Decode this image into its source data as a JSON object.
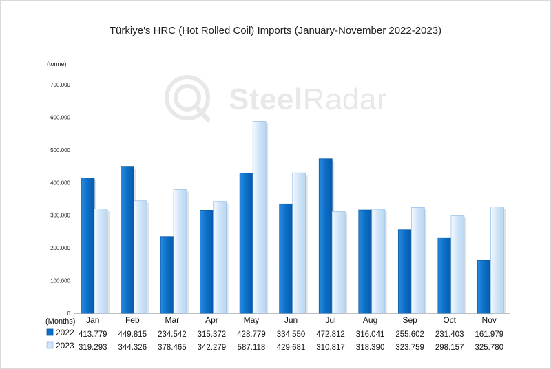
{
  "chart_data": {
    "type": "bar",
    "title": "Türkiye's HRC (Hot Rolled Coil) Imports (January-November 2022-2023)",
    "unit": "(tonne)",
    "xlabel": "(Months)",
    "categories": [
      "Jan",
      "Feb",
      "Mar",
      "Apr",
      "May",
      "Jun",
      "Jul",
      "Aug",
      "Sep",
      "Oct",
      "Nov"
    ],
    "series": [
      {
        "name": "2022",
        "color": "#0b6fc7",
        "values": [
          413779,
          449815,
          234542,
          315372,
          428779,
          334550,
          472812,
          316041,
          255602,
          231403,
          161979
        ],
        "labels": [
          "413.779",
          "449.815",
          "234.542",
          "315.372",
          "428.779",
          "334.550",
          "472.812",
          "316.041",
          "255.602",
          "231.403",
          "161.979"
        ]
      },
      {
        "name": "2023",
        "color": "#cfe4f8",
        "values": [
          319293,
          344326,
          378465,
          342279,
          587118,
          429681,
          310817,
          318390,
          323759,
          298157,
          325780
        ],
        "labels": [
          "319.293",
          "344.326",
          "378.465",
          "342.279",
          "587.118",
          "429.681",
          "310.817",
          "318.390",
          "323.759",
          "298.157",
          "325.780"
        ]
      }
    ],
    "yticks": [
      "0",
      "100.000",
      "200.000",
      "300.000",
      "400.000",
      "500.000",
      "600.000",
      "700.000"
    ],
    "ylim": [
      0,
      700000
    ],
    "grid": false,
    "legend": "data-table"
  },
  "watermark": {
    "text_bold": "Steel",
    "text_light": "Radar"
  }
}
